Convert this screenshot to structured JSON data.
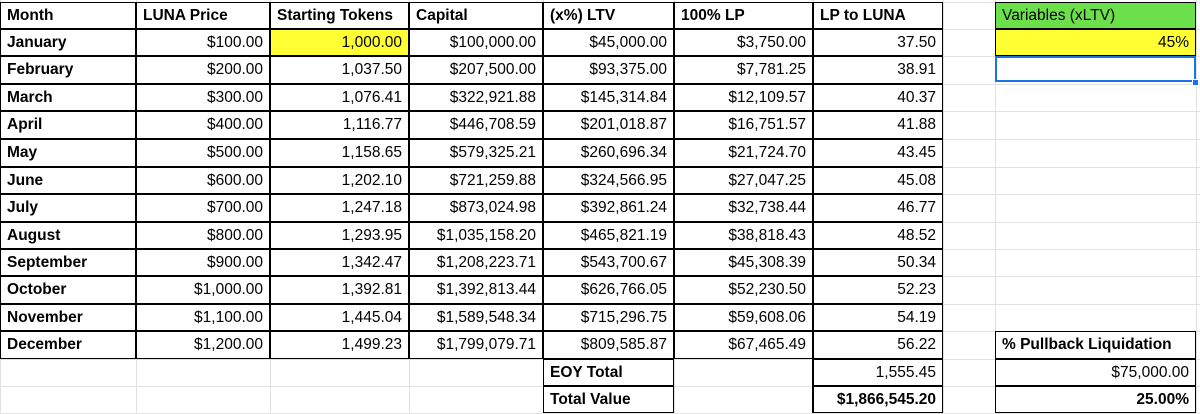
{
  "headers": [
    "Month",
    "LUNA Price",
    "Starting Tokens",
    "Capital",
    "(x%) LTV",
    "100% LP",
    "LP to LUNA"
  ],
  "rows": [
    [
      "January",
      "$100.00",
      "1,000.00",
      "$100,000.00",
      "$45,000.00",
      "$3,750.00",
      "37.50"
    ],
    [
      "February",
      "$200.00",
      "1,037.50",
      "$207,500.00",
      "$93,375.00",
      "$7,781.25",
      "38.91"
    ],
    [
      "March",
      "$300.00",
      "1,076.41",
      "$322,921.88",
      "$145,314.84",
      "$12,109.57",
      "40.37"
    ],
    [
      "April",
      "$400.00",
      "1,116.77",
      "$446,708.59",
      "$201,018.87",
      "$16,751.57",
      "41.88"
    ],
    [
      "May",
      "$500.00",
      "1,158.65",
      "$579,325.21",
      "$260,696.34",
      "$21,724.70",
      "43.45"
    ],
    [
      "June",
      "$600.00",
      "1,202.10",
      "$721,259.88",
      "$324,566.95",
      "$27,047.25",
      "45.08"
    ],
    [
      "July",
      "$700.00",
      "1,247.18",
      "$873,024.98",
      "$392,861.24",
      "$32,738.44",
      "46.77"
    ],
    [
      "August",
      "$800.00",
      "1,293.95",
      "$1,035,158.20",
      "$465,821.19",
      "$38,818.43",
      "48.52"
    ],
    [
      "September",
      "$900.00",
      "1,342.47",
      "$1,208,223.71",
      "$543,700.67",
      "$45,308.39",
      "50.34"
    ],
    [
      "October",
      "$1,000.00",
      "1,392.81",
      "$1,392,813.44",
      "$626,766.05",
      "$52,230.50",
      "52.23"
    ],
    [
      "November",
      "$1,100.00",
      "1,445.04",
      "$1,589,548.34",
      "$715,296.75",
      "$59,608.06",
      "54.19"
    ],
    [
      "December",
      "$1,200.00",
      "1,499.23",
      "$1,799,079.71",
      "$809,585.87",
      "$67,465.49",
      "56.22"
    ]
  ],
  "totals": [
    {
      "label": "EOY Total",
      "value": "1,555.45"
    },
    {
      "label": "Total Value",
      "value": "$1,866,545.20"
    }
  ],
  "side": {
    "variables_header": "Variables (xLTV)",
    "variables_value": "45%",
    "pullback_header": "% Pullback Liquidation",
    "pullback_amount": "$75,000.00",
    "pullback_percent": "25.00%"
  },
  "colors": {
    "variables_header_bg": "#6ce04a",
    "highlight_yellow": "#ffff33",
    "selection_blue": "#1a73e8",
    "gridline": "#e2e2e2",
    "border": "#000000"
  }
}
